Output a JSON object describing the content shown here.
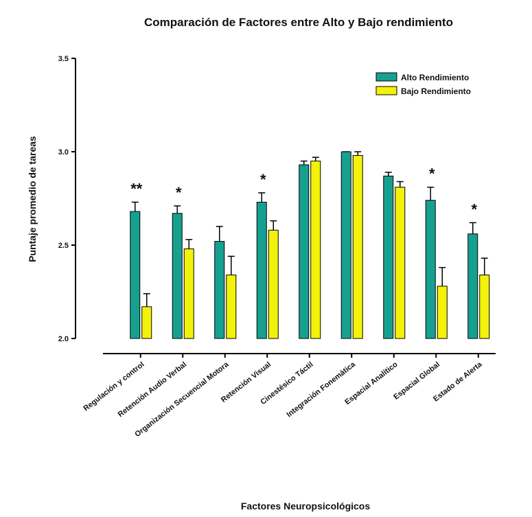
{
  "chart_data": {
    "type": "bar",
    "title": "Comparación de Factores entre Alto y Bajo rendimiento",
    "xlabel": "Factores Neuropsicológicos",
    "ylabel": "Puntaje promedio de tareas",
    "categories": [
      "Regulación y control",
      "Retención Audio Verbal",
      "Organización Secuencial Motora",
      "Retención Visual",
      "Cinestésico Táctil",
      "Integración Fonemática",
      "Espacial Analítico",
      "Espacial Global",
      "Estado de Alerta"
    ],
    "series": [
      {
        "name": "Alto Rendimiento",
        "color": "#17a08f",
        "values": [
          2.68,
          2.67,
          2.52,
          2.73,
          2.93,
          3.0,
          2.87,
          2.74,
          2.56
        ],
        "errors": [
          0.05,
          0.04,
          0.08,
          0.05,
          0.02,
          0.0,
          0.02,
          0.07,
          0.06
        ]
      },
      {
        "name": "Bajo Rendimiento",
        "color": "#f2f20a",
        "values": [
          2.17,
          2.48,
          2.34,
          2.58,
          2.95,
          2.98,
          2.81,
          2.28,
          2.34
        ],
        "errors": [
          0.07,
          0.05,
          0.1,
          0.05,
          0.02,
          0.02,
          0.03,
          0.1,
          0.09
        ]
      }
    ],
    "annotations": [
      "**",
      "*",
      null,
      "*",
      null,
      null,
      null,
      "*",
      "*"
    ],
    "ylim": [
      2.0,
      3.5
    ],
    "yticks": [
      {
        "value": 2.0,
        "label": "2.0"
      },
      2.5,
      {
        "value": 3.0,
        "label": "3.0"
      },
      3.5
    ],
    "legend": "upper right"
  }
}
